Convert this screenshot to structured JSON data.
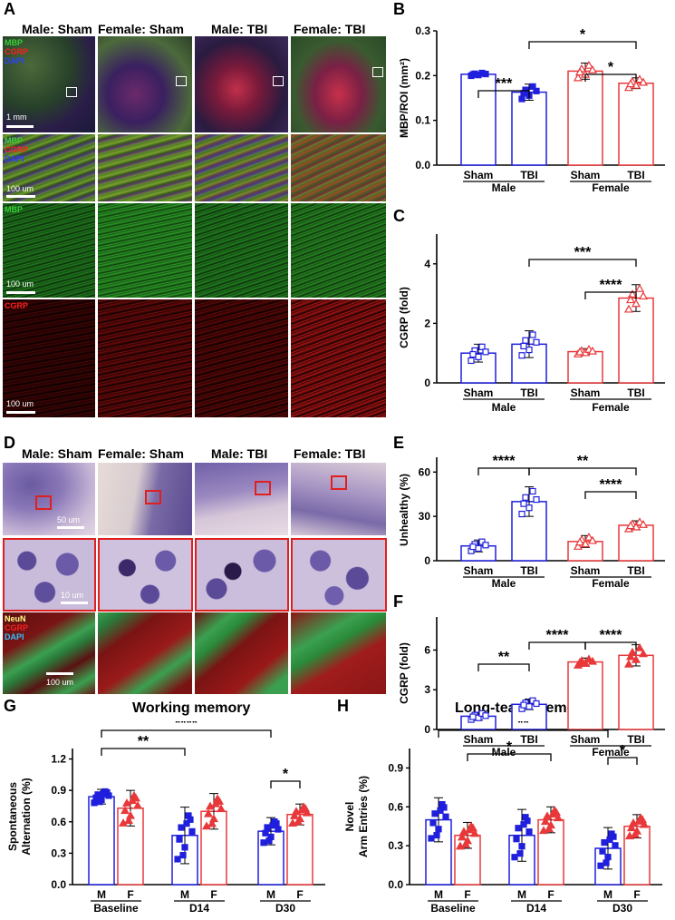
{
  "panels": {
    "A": "A",
    "B": "B",
    "C": "C",
    "D": "D",
    "E": "E",
    "F": "F",
    "G": "G",
    "H": "H"
  },
  "colors": {
    "male": "#1f1fdd",
    "female": "#e8383a",
    "mbp": "#39d038",
    "cgrp": "#ff2020",
    "dapi": "#2b43ff",
    "neun": "#ffff88"
  },
  "group_headers": [
    "Male: Sham",
    "Female: Sham",
    "Male: TBI",
    "Female: TBI"
  ],
  "panel_A": {
    "row1_labels": [
      "MBP",
      "CGRP",
      "DAPI"
    ],
    "row1_scale": "1 mm",
    "row2_labels": [
      "MBP",
      "CGRP",
      "DAPI"
    ],
    "row2_scale": "100 um",
    "row3_label": "MBP",
    "row3_scale": "100 um",
    "row4_label": "CGRP",
    "row4_scale": "100 um"
  },
  "panel_D": {
    "row1_scale": "50 um",
    "row2_scale": "10 um",
    "row3_labels": [
      "NeuN",
      "CGRP",
      "DAPI"
    ],
    "row3_scale": "100 um"
  },
  "chart_data": [
    {
      "id": "B",
      "type": "bar",
      "ylabel": "MBP/ROI (mm²)",
      "ylim": [
        0,
        0.3
      ],
      "yticks": [
        "0.0",
        "0.1",
        "0.2",
        "0.3"
      ],
      "categories": [
        "Sham",
        "TBI",
        "Sham",
        "TBI"
      ],
      "groups": [
        "Male",
        "Female"
      ],
      "values": [
        0.203,
        0.163,
        0.21,
        0.183
      ],
      "errors": [
        0.004,
        0.018,
        0.018,
        0.012
      ],
      "series_colors": [
        "male",
        "male",
        "female",
        "female"
      ],
      "significance": [
        "***",
        "*",
        "*"
      ]
    },
    {
      "id": "C",
      "type": "bar",
      "ylabel": "CGRP (fold)",
      "ylim": [
        0,
        5
      ],
      "yticks": [
        "0",
        "2",
        "4"
      ],
      "categories": [
        "Sham",
        "TBI",
        "Sham",
        "TBI"
      ],
      "groups": [
        "Male",
        "Female"
      ],
      "values": [
        1.0,
        1.3,
        1.05,
        2.85
      ],
      "errors": [
        0.3,
        0.45,
        0.1,
        0.45
      ],
      "series_colors": [
        "male",
        "male",
        "female",
        "female"
      ],
      "significance": [
        "***",
        "****"
      ]
    },
    {
      "id": "E",
      "type": "bar",
      "ylabel": "Unhealthy (%)",
      "ylim": [
        0,
        70
      ],
      "yticks": [
        "0",
        "30",
        "60"
      ],
      "categories": [
        "Sham",
        "TBI",
        "Sham",
        "TBI"
      ],
      "groups": [
        "Male",
        "Female"
      ],
      "values": [
        10,
        40,
        13,
        24
      ],
      "errors": [
        4,
        10,
        4,
        3
      ],
      "series_colors": [
        "male",
        "male",
        "female",
        "female"
      ],
      "significance": [
        "****",
        "**",
        "****"
      ]
    },
    {
      "id": "F",
      "type": "bar",
      "ylabel": "CGRP (fold)",
      "ylim": [
        0,
        8.5
      ],
      "yticks": [
        "0",
        "3",
        "6"
      ],
      "categories": [
        "Sham",
        "TBI",
        "Sham",
        "TBI"
      ],
      "groups": [
        "Male",
        "Female"
      ],
      "values": [
        1.0,
        1.9,
        5.1,
        5.6
      ],
      "errors": [
        0.3,
        0.4,
        0.3,
        0.8
      ],
      "series_colors": [
        "male",
        "male",
        "female",
        "female"
      ],
      "significance": [
        "**",
        "****",
        "****"
      ]
    },
    {
      "id": "G",
      "type": "bar",
      "title": "Working memory",
      "ylabel": "Spontaneous Alternation (%)",
      "ylim": [
        0,
        1.3
      ],
      "yticks": [
        "0.0",
        "0.3",
        "0.6",
        "0.9",
        "1.2"
      ],
      "categories": [
        "M",
        "F",
        "M",
        "F",
        "M",
        "F"
      ],
      "groups": [
        "Baseline",
        "D14",
        "D30"
      ],
      "values": [
        0.84,
        0.73,
        0.47,
        0.7,
        0.51,
        0.67
      ],
      "errors": [
        0.07,
        0.17,
        0.27,
        0.17,
        0.13,
        0.1
      ],
      "series_colors": [
        "male",
        "female",
        "male",
        "female",
        "male",
        "female"
      ],
      "significance": [
        "****",
        "**",
        "*"
      ]
    },
    {
      "id": "H",
      "type": "bar",
      "title": "Long-team memory",
      "ylabel": "Novel Arm Entries (%)",
      "ylim": [
        0,
        1.05
      ],
      "yticks": [
        "0.0",
        "0.3",
        "0.6",
        "0.9"
      ],
      "categories": [
        "M",
        "F",
        "M",
        "F",
        "M",
        "F"
      ],
      "groups": [
        "Baseline",
        "D14",
        "D30"
      ],
      "values": [
        0.5,
        0.38,
        0.38,
        0.5,
        0.28,
        0.45
      ],
      "errors": [
        0.17,
        0.1,
        0.2,
        0.1,
        0.16,
        0.09
      ],
      "series_colors": [
        "male",
        "female",
        "male",
        "female",
        "male",
        "female"
      ],
      "significance": [
        "**",
        "*",
        "*"
      ]
    }
  ]
}
